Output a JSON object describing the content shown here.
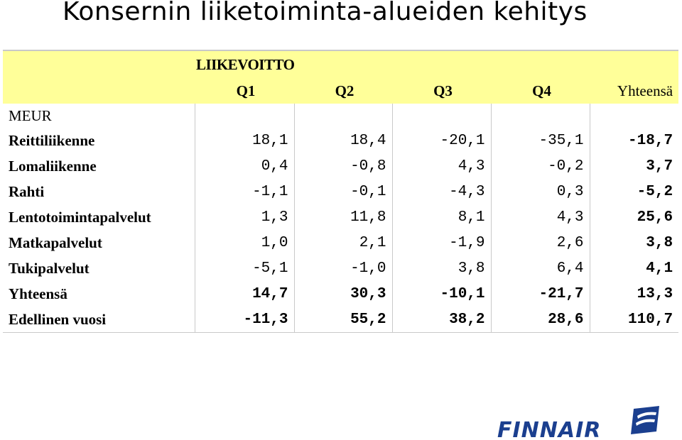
{
  "title": "Konsernin liiketoiminta-alueiden kehitys",
  "table": {
    "caption": "LIIKEVOITTO",
    "columns": [
      "Q1",
      "Q2",
      "Q3",
      "Q4",
      "Yhteensä"
    ],
    "unit": "MEUR",
    "rows": [
      {
        "label": "Reittiliikenne",
        "values": [
          "18,1",
          "18,4",
          "-20,1",
          "-35,1",
          "-18,7"
        ]
      },
      {
        "label": "Lomaliikenne",
        "values": [
          "0,4",
          "-0,8",
          "4,3",
          "-0,2",
          "3,7"
        ]
      },
      {
        "label": "Rahti",
        "values": [
          "-1,1",
          "-0,1",
          "-4,3",
          "0,3",
          "-5,2"
        ]
      },
      {
        "label": "Lentotoimintapalvelut",
        "values": [
          "1,3",
          "11,8",
          "8,1",
          "4,3",
          "25,6"
        ]
      },
      {
        "label": "Matkapalvelut",
        "values": [
          "1,0",
          "2,1",
          "-1,9",
          "2,6",
          "3,8"
        ]
      },
      {
        "label": "Tukipalvelut",
        "values": [
          "-5,1",
          "-1,0",
          "3,8",
          "6,4",
          "4,1"
        ]
      },
      {
        "label": "Yhteensä",
        "values": [
          "14,7",
          "30,3",
          "-10,1",
          "-21,7",
          "13,3"
        ]
      },
      {
        "label": "Edellinen vuosi",
        "values": [
          "-11,3",
          "55,2",
          "38,2",
          "28,6",
          "110,7"
        ]
      }
    ]
  },
  "logo": {
    "text": "FINNAIR",
    "color": "#1b3f8f",
    "icon": "finnair-flag-logo"
  },
  "colors": {
    "header_bg": "#ffff99",
    "grid": "#c9c9c9"
  }
}
